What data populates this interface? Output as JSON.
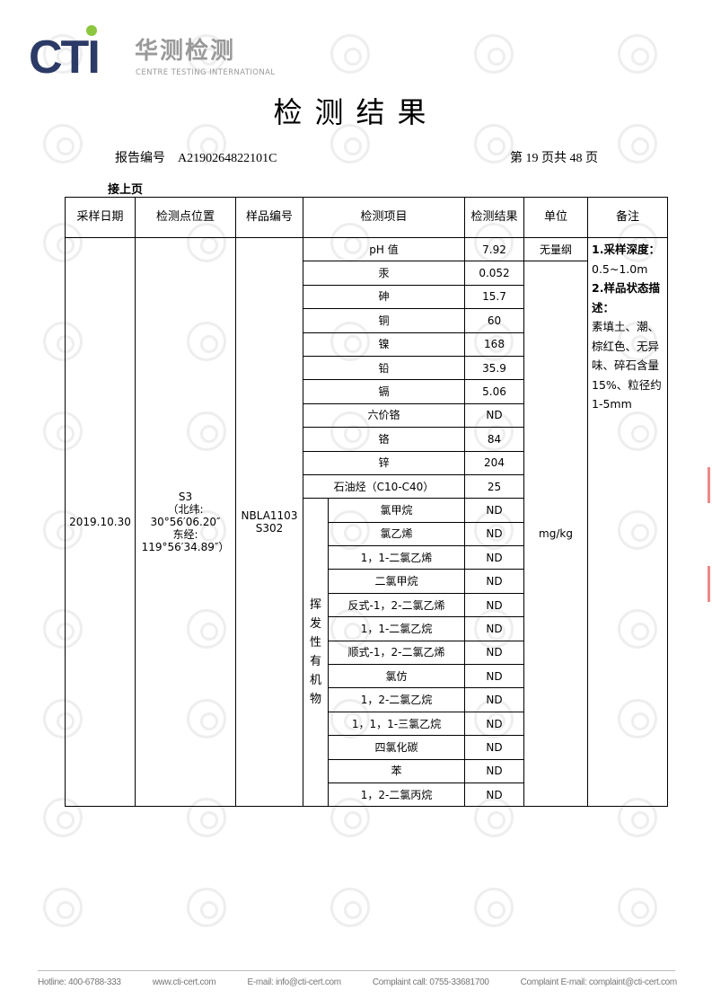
{
  "header": {
    "logo_text": "CTI",
    "logo_cn": "华测检测",
    "logo_en": "CENTRE TESTING INTERNATIONAL",
    "title": "检测结果",
    "report_label": "报告编号",
    "report_no": "A2190264822101C",
    "page_info": "第 19 页共 48 页",
    "continued": "接上页"
  },
  "table": {
    "headers": [
      "采样日期",
      "检测点位置",
      "样品编号",
      "检测项目",
      "检测结果",
      "单位",
      "备注"
    ],
    "date": "2019.10.30",
    "location": [
      "S3",
      "（北纬:",
      "30°56′06.20″",
      "东经:",
      "119°56′34.89″）"
    ],
    "sample_no": [
      "NBLA1103",
      "S302"
    ],
    "voc_group": [
      "挥",
      "发",
      "性",
      "有",
      "机",
      "物"
    ],
    "rows": [
      {
        "item": "pH 值",
        "result": "7.92"
      },
      {
        "item": "汞",
        "result": "0.052"
      },
      {
        "item": "砷",
        "result": "15.7"
      },
      {
        "item": "铜",
        "result": "60"
      },
      {
        "item": "镍",
        "result": "168"
      },
      {
        "item": "铅",
        "result": "35.9"
      },
      {
        "item": "镉",
        "result": "5.06"
      },
      {
        "item": "六价铬",
        "result": "ND"
      },
      {
        "item": "铬",
        "result": "84"
      },
      {
        "item": "锌",
        "result": "204"
      },
      {
        "item": "石油烃（C10-C40）",
        "result": "25"
      }
    ],
    "voc_rows": [
      {
        "item": "氯甲烷",
        "result": "ND"
      },
      {
        "item": "氯乙烯",
        "result": "ND"
      },
      {
        "item": "1，1-二氯乙烯",
        "result": "ND"
      },
      {
        "item": "二氯甲烷",
        "result": "ND"
      },
      {
        "item": "反式-1，2-二氯乙烯",
        "result": "ND"
      },
      {
        "item": "1，1-二氯乙烷",
        "result": "ND"
      },
      {
        "item": "顺式-1，2-二氯乙烯",
        "result": "ND"
      },
      {
        "item": "氯仿",
        "result": "ND"
      },
      {
        "item": "1，2-二氯乙烷",
        "result": "ND"
      },
      {
        "item": "1，1，1-三氯乙烷",
        "result": "ND"
      },
      {
        "item": "四氯化碳",
        "result": "ND"
      },
      {
        "item": "苯",
        "result": "ND"
      },
      {
        "item": "1，2-二氯丙烷",
        "result": "ND"
      }
    ],
    "unit_ph": "无量纲",
    "unit": "mg/kg",
    "remark": [
      "1.采样深度：",
      "0.5~1.0m",
      "2.样品状态描述：",
      "素填土、潮、棕红色、无异味、碎石含量 15%、粒径约 1-5mm"
    ]
  },
  "footer": [
    "Hotline: 400-6788-333",
    "www.cti-cert.com",
    "E-mail: info@cti-cert.com",
    "Complaint call: 0755-33681700",
    "Complaint E-mail: complaint@cti-cert.com"
  ]
}
